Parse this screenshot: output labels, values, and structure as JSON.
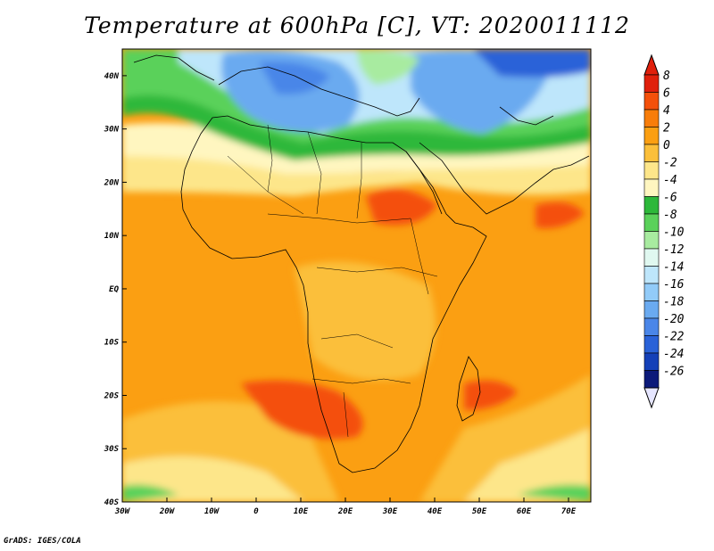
{
  "title": "Temperature at 600hPa [C], VT: 2020011112",
  "footer": "GrADS: IGES/COLA",
  "map": {
    "lon_range": [
      -30,
      75
    ],
    "lat_range": [
      -40,
      45
    ],
    "lon_ticks": [
      {
        "value": -30,
        "label": "30W"
      },
      {
        "value": -20,
        "label": "20W"
      },
      {
        "value": -10,
        "label": "10W"
      },
      {
        "value": 0,
        "label": "0"
      },
      {
        "value": 10,
        "label": "10E"
      },
      {
        "value": 20,
        "label": "20E"
      },
      {
        "value": 30,
        "label": "30E"
      },
      {
        "value": 40,
        "label": "40E"
      },
      {
        "value": 50,
        "label": "50E"
      },
      {
        "value": 60,
        "label": "60E"
      },
      {
        "value": 70,
        "label": "70E"
      }
    ],
    "lat_ticks": [
      {
        "value": 40,
        "label": "40N"
      },
      {
        "value": 30,
        "label": "30N"
      },
      {
        "value": 20,
        "label": "20N"
      },
      {
        "value": 10,
        "label": "10N"
      },
      {
        "value": 0,
        "label": "EQ"
      },
      {
        "value": -10,
        "label": "10S"
      },
      {
        "value": -20,
        "label": "20S"
      },
      {
        "value": -30,
        "label": "30S"
      },
      {
        "value": -40,
        "label": "40S"
      }
    ]
  },
  "colorbar": {
    "levels": [
      "8",
      "6",
      "4",
      "2",
      "0",
      "-2",
      "-4",
      "-6",
      "-8",
      "-10",
      "-12",
      "-14",
      "-16",
      "-18",
      "-20",
      "-22",
      "-24",
      "-26"
    ],
    "colors": [
      "#e0200c",
      "#f4500a",
      "#f87d0a",
      "#fb9f12",
      "#fbbf3a",
      "#fde68a",
      "#fff6c0",
      "#2db83a",
      "#5ad15a",
      "#a8eba0",
      "#e0f8f0",
      "#bee6fb",
      "#92cbf8",
      "#6aaaf0",
      "#4a86e8",
      "#2a62d8",
      "#1440b8",
      "#0c1a7a"
    ],
    "top_color": "#e0200c",
    "bottom_color": "#e6e6ff"
  },
  "colors": {
    "ocean_default": "#fb9f12",
    "coastline": "#000000"
  }
}
